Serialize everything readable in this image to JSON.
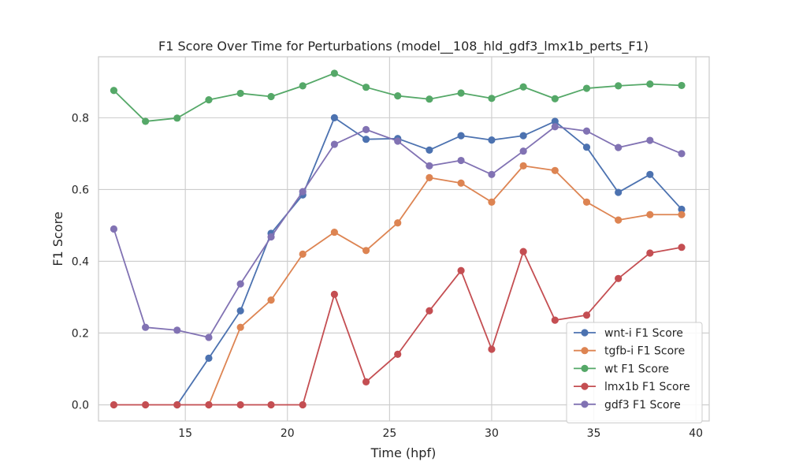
{
  "chart_data": {
    "type": "line",
    "title": "F1 Score Over Time for Perturbations (model__108_hld_gdf3_lmx1b_perts_F1)",
    "xlabel": "Time (hpf)",
    "ylabel": "F1 Score",
    "xlim": [
      10.75,
      40.65
    ],
    "ylim": [
      -0.045,
      0.97
    ],
    "xticks": [
      15,
      20,
      25,
      30,
      35,
      40
    ],
    "yticks": [
      0.0,
      0.2,
      0.4,
      0.6,
      0.8
    ],
    "xtick_labels": [
      "15",
      "20",
      "25",
      "30",
      "35",
      "40"
    ],
    "ytick_labels": [
      "0.0",
      "0.2",
      "0.4",
      "0.6",
      "0.8"
    ],
    "grid": true,
    "legend_position": "lower-right",
    "x": [
      11.5,
      13.05,
      14.6,
      16.15,
      17.7,
      19.2,
      20.75,
      22.3,
      23.85,
      25.4,
      26.95,
      28.5,
      30.0,
      31.55,
      33.1,
      34.65,
      36.2,
      37.75,
      39.3
    ],
    "series": [
      {
        "name": "wnt-i F1 Score",
        "color": "#4c72b0",
        "x": [
          14.6,
          16.15,
          17.7,
          19.2,
          20.75,
          22.3,
          23.85,
          25.4,
          26.95,
          28.5,
          30.0,
          31.55,
          33.1,
          34.65,
          36.2,
          37.75,
          39.3
        ],
        "values": [
          0.0,
          0.13,
          0.262,
          0.478,
          0.585,
          0.8,
          0.74,
          0.742,
          0.71,
          0.75,
          0.738,
          0.75,
          0.79,
          0.718,
          0.592,
          0.642,
          0.545
        ]
      },
      {
        "name": "tgfb-i F1 Score",
        "color": "#dd8452",
        "x": [
          16.15,
          17.7,
          19.2,
          20.75,
          22.3,
          23.85,
          25.4,
          26.95,
          28.5,
          30.0,
          31.55,
          33.1,
          34.65,
          36.2,
          37.75,
          39.3
        ],
        "values": [
          0.0,
          0.216,
          0.292,
          0.42,
          0.481,
          0.43,
          0.507,
          0.633,
          0.618,
          0.565,
          0.666,
          0.653,
          0.565,
          0.515,
          0.53,
          0.53
        ]
      },
      {
        "name": "wt F1 Score",
        "color": "#55a868",
        "x": [
          11.5,
          13.05,
          14.6,
          16.15,
          17.7,
          19.2,
          20.75,
          22.3,
          23.85,
          25.4,
          26.95,
          28.5,
          30.0,
          31.55,
          33.1,
          34.65,
          36.2,
          37.75,
          39.3
        ],
        "values": [
          0.876,
          0.79,
          0.799,
          0.85,
          0.868,
          0.859,
          0.889,
          0.924,
          0.885,
          0.861,
          0.852,
          0.869,
          0.854,
          0.886,
          0.853,
          0.882,
          0.889,
          0.894,
          0.89
        ]
      },
      {
        "name": "lmx1b F1 Score",
        "color": "#c44e52",
        "x": [
          11.5,
          13.05,
          14.6,
          16.15,
          17.7,
          19.2,
          20.75,
          22.3,
          23.85,
          25.4,
          26.95,
          28.5,
          30.0,
          31.55,
          33.1,
          34.65,
          36.2,
          37.75,
          39.3
        ],
        "values": [
          0.0,
          0.0,
          0.0,
          0.0,
          0.0,
          0.0,
          0.0,
          0.308,
          0.064,
          0.141,
          0.262,
          0.374,
          0.155,
          0.427,
          0.236,
          0.25,
          0.352,
          0.423,
          0.439
        ]
      },
      {
        "name": "gdf3 F1 Score",
        "color": "#8172b3",
        "x": [
          11.5,
          13.05,
          14.6,
          16.15,
          17.7,
          19.2,
          20.75,
          22.3,
          23.85,
          25.4,
          26.95,
          28.5,
          30.0,
          31.55,
          33.1,
          34.65,
          36.2,
          37.75,
          39.3
        ],
        "values": [
          0.49,
          0.216,
          0.208,
          0.188,
          0.337,
          0.468,
          0.594,
          0.726,
          0.767,
          0.735,
          0.666,
          0.681,
          0.642,
          0.707,
          0.775,
          0.763,
          0.717,
          0.737,
          0.7
        ]
      }
    ]
  }
}
